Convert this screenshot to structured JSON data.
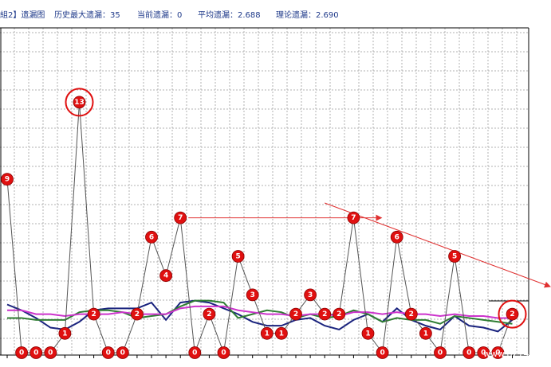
{
  "header": {
    "title": "組2】遗漏图",
    "max_label": "历史最大遗漏：35",
    "current_label": "当前遗漏：0",
    "avg_label": "平均遗漏：2.688",
    "theory_label": "理论遗漏：2.690"
  },
  "watermark": {
    "line1": "大赢家彩讯",
    "line2": "www.8274396"
  },
  "chart_data": {
    "type": "line",
    "title": "組2】遗漏图",
    "xlabel": "",
    "ylabel": "",
    "ylim": [
      0,
      15
    ],
    "grid": true,
    "legend": "none",
    "x": [
      1,
      2,
      3,
      4,
      5,
      6,
      7,
      8,
      9,
      10,
      11,
      12,
      13,
      14,
      15,
      16,
      17,
      18,
      19,
      20,
      21,
      22,
      23,
      24,
      25,
      26,
      27,
      28,
      29,
      30,
      31,
      32,
      33,
      34,
      35,
      36
    ],
    "series": [
      {
        "name": "",
        "color": "#555555",
        "values": [
          9,
          0,
          0,
          0,
          1,
          13,
          2,
          0,
          0,
          2,
          6,
          4,
          7,
          0,
          2,
          0,
          5,
          3,
          1,
          1,
          2,
          3,
          2,
          2,
          7,
          1,
          0,
          6,
          2,
          1,
          0,
          5,
          0,
          0,
          0,
          2
        ]
      }
    ],
    "averages": [
      {
        "color": "#1a237e",
        "values": [
          2.5,
          2.2,
          1.8,
          1.3,
          1.2,
          1.6,
          2.2,
          2.3,
          2.3,
          2.3,
          2.6,
          1.7,
          2.6,
          2.7,
          2.6,
          2.3,
          2.0,
          1.6,
          1.4,
          1.4,
          1.7,
          1.8,
          1.4,
          1.2,
          1.7,
          2.0,
          1.6,
          2.3,
          1.7,
          1.4,
          1.2,
          1.9,
          1.4,
          1.3,
          1.1,
          1.7
        ]
      },
      {
        "color": "#2e7d32",
        "values": [
          1.8,
          1.8,
          1.7,
          1.7,
          1.7,
          2.1,
          2.2,
          2.2,
          2.1,
          1.8,
          1.9,
          2.0,
          2.4,
          2.7,
          2.7,
          2.6,
          1.8,
          2.0,
          2.2,
          2.1,
          1.8,
          2.0,
          1.8,
          1.9,
          2.2,
          2.0,
          1.6,
          1.8,
          1.7,
          1.7,
          1.5,
          1.9,
          1.8,
          1.7,
          1.6,
          1.5
        ]
      },
      {
        "color": "#cc33cc",
        "values": [
          2.2,
          2.2,
          2.0,
          2.0,
          1.9,
          2.0,
          2.0,
          2.0,
          2.1,
          2.0,
          2.0,
          2.0,
          2.3,
          2.4,
          2.4,
          2.4,
          2.2,
          2.1,
          2.0,
          2.0,
          1.9,
          2.0,
          2.0,
          1.9,
          2.1,
          2.1,
          2.0,
          2.1,
          2.0,
          2.0,
          1.9,
          2.0,
          1.9,
          1.9,
          1.8,
          1.8
        ]
      }
    ],
    "highlighted_points": [
      6,
      36
    ],
    "annotations": [
      "arrow from point 13 to point 25",
      "trend arrow across points 25–36"
    ]
  },
  "colors": {
    "ball": "#e01010",
    "highlight_ring": "#e01010",
    "grid": "#b0b0b0",
    "axis": "#000000",
    "arrow": "#e03030",
    "header_text": "#1f3a8a"
  }
}
